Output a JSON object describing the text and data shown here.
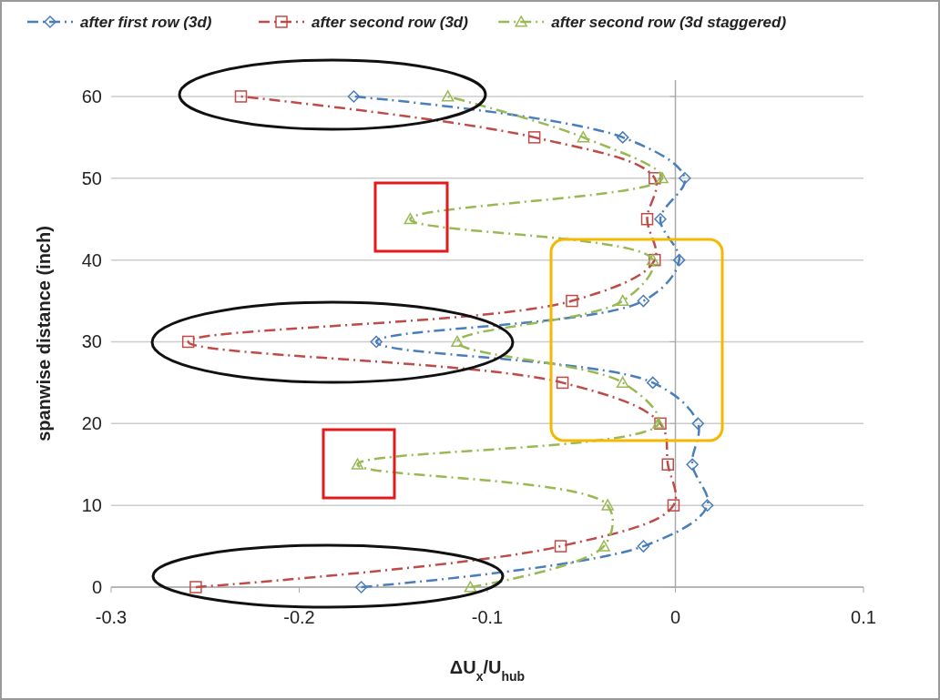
{
  "chart_data": {
    "type": "line",
    "xlabel": "ΔU$_{x}$/U$_{hub}$",
    "ylabel": "spanwise distance (inch)",
    "xlim": [
      -0.3,
      0.1
    ],
    "xticks": [
      -0.3,
      -0.2,
      -0.1,
      0,
      0.1
    ],
    "ylim": [
      0,
      62
    ],
    "yticks": [
      0,
      10,
      20,
      30,
      40,
      50,
      60
    ],
    "grid": "y",
    "legend": "top",
    "line_style": "dashed",
    "series": [
      {
        "name": "after first row (3d)",
        "color": "#4a7ebb",
        "marker": "diamond",
        "x": [
          -0.167,
          -0.017,
          0.017,
          0.009,
          0.012,
          -0.012,
          -0.159,
          -0.017,
          0.002,
          -0.008,
          0.005,
          -0.028,
          -0.171
        ],
        "values": [
          0,
          5,
          10,
          15,
          20,
          25,
          30,
          35,
          40,
          45,
          50,
          55,
          60
        ]
      },
      {
        "name": "after second row (3d)",
        "color": "#be4b48",
        "marker": "square",
        "x": [
          -0.255,
          -0.061,
          -0.001,
          -0.004,
          -0.008,
          -0.06,
          -0.259,
          -0.055,
          -0.011,
          -0.015,
          -0.011,
          -0.075,
          -0.231
        ],
        "values": [
          0,
          5,
          10,
          15,
          20,
          25,
          30,
          35,
          40,
          45,
          50,
          55,
          60
        ]
      },
      {
        "name": "after second row (3d staggered)",
        "color": "#98b954",
        "marker": "triangle",
        "x": [
          -0.109,
          -0.038,
          -0.036,
          -0.169,
          -0.009,
          -0.028,
          -0.116,
          -0.028,
          -0.012,
          -0.141,
          -0.007,
          -0.049,
          -0.121
        ],
        "values": [
          0,
          5,
          10,
          15,
          20,
          25,
          30,
          35,
          40,
          45,
          50,
          55,
          60
        ]
      }
    ]
  }
}
